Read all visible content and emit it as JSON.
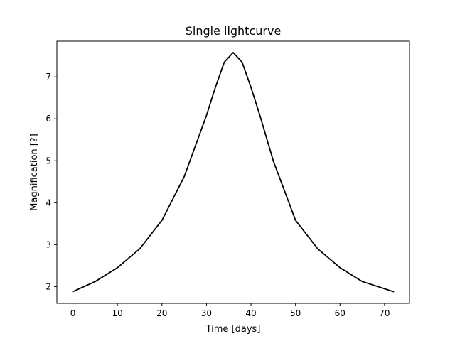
{
  "chart_data": {
    "type": "line",
    "title": "Single lightcurve",
    "xlabel": "Time [days]",
    "ylabel": "Magnification [?]",
    "xlim": [
      -3.6,
      75.6
    ],
    "ylim": [
      1.6,
      7.85
    ],
    "xticks": [
      0,
      10,
      20,
      30,
      40,
      50,
      60,
      70
    ],
    "yticks": [
      2,
      3,
      4,
      5,
      6,
      7
    ],
    "grid": false,
    "legend": "none",
    "series": [
      {
        "color": "#000000",
        "x": [
          0,
          5,
          10,
          15,
          20,
          25,
          30,
          32,
          34,
          36,
          38,
          40,
          42,
          45,
          50,
          55,
          60,
          65,
          72
        ],
        "y": [
          1.88,
          2.12,
          2.45,
          2.9,
          3.58,
          4.62,
          6.08,
          6.75,
          7.35,
          7.58,
          7.35,
          6.75,
          6.08,
          5.0,
          3.58,
          2.9,
          2.45,
          2.12,
          1.88
        ]
      }
    ]
  }
}
